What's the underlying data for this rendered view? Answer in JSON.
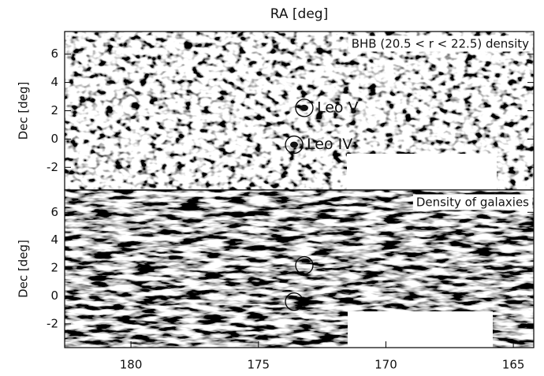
{
  "chart_data": [
    {
      "type": "heatmap",
      "title": "BHB (20.5 < r < 22.5) density",
      "xlabel": "RA [deg]",
      "ylabel": "Dec [deg]",
      "xlim": [
        182.6,
        164.2
      ],
      "ylim": [
        -3.6,
        7.6
      ],
      "yticks": [
        -2,
        0,
        2,
        4,
        6
      ],
      "markers": [
        {
          "x": 173.2,
          "y": 2.2,
          "label": "Leo V"
        },
        {
          "x": 173.6,
          "y": -0.4,
          "label": "Leo IV"
        }
      ]
    },
    {
      "type": "heatmap",
      "title": "Density of galaxies",
      "ylabel": "Dec [deg]",
      "xlim": [
        182.6,
        164.2
      ],
      "ylim": [
        -3.7,
        7.6
      ],
      "yticks": [
        -2,
        0,
        2,
        4,
        6
      ],
      "xticks": [
        180,
        175,
        170,
        165
      ],
      "markers": [
        {
          "x": 173.2,
          "y": 2.2
        },
        {
          "x": 173.6,
          "y": -0.4
        }
      ]
    }
  ]
}
